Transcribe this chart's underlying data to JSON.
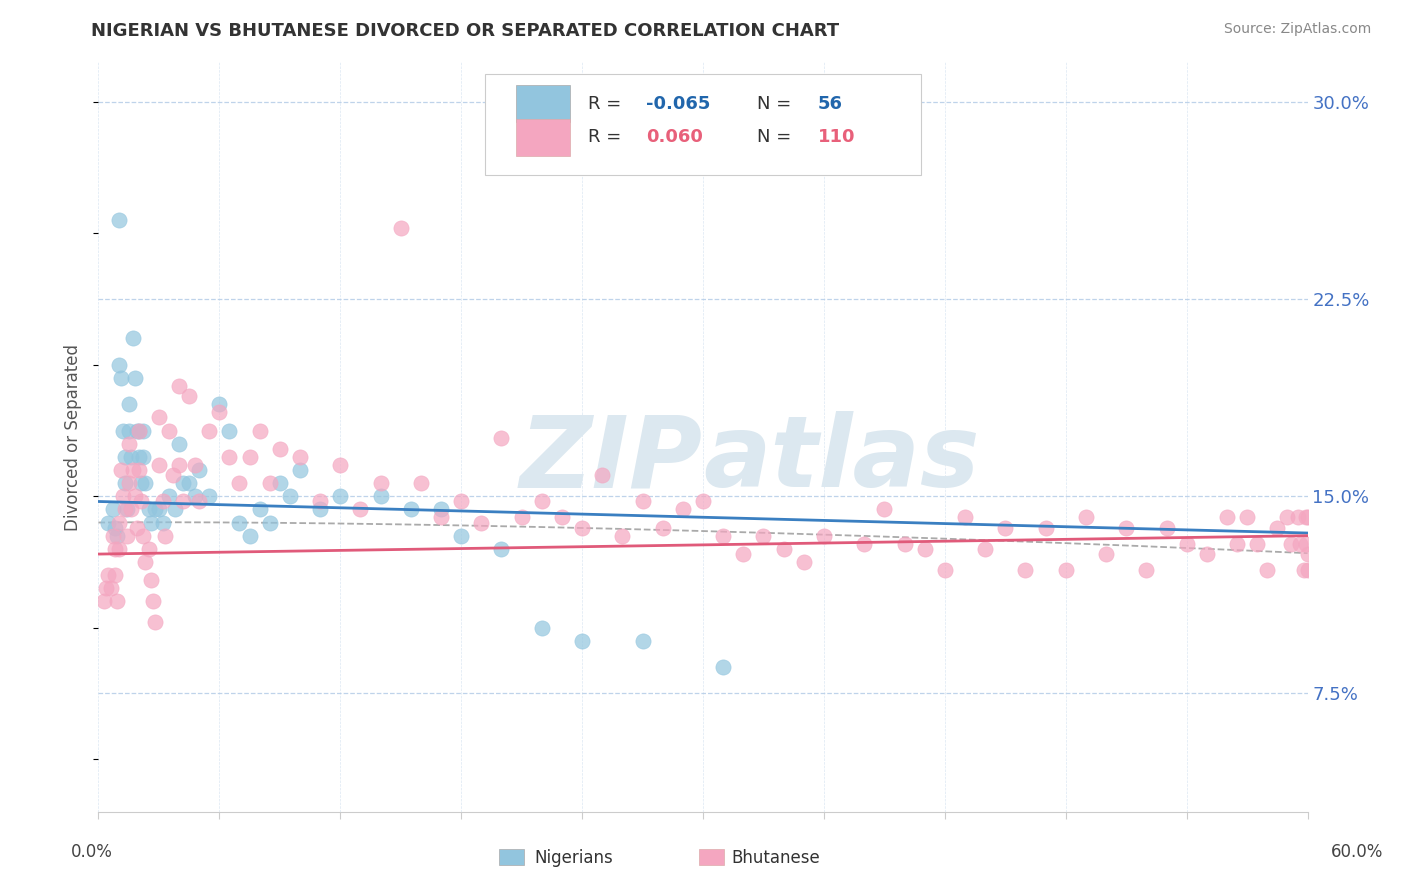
{
  "title": "NIGERIAN VS BHUTANESE DIVORCED OR SEPARATED CORRELATION CHART",
  "source_text": "Source: ZipAtlas.com",
  "ylabel": "Divorced or Separated",
  "xlim": [
    0.0,
    0.6
  ],
  "ylim": [
    0.03,
    0.315
  ],
  "yticks": [
    0.075,
    0.15,
    0.225,
    0.3
  ],
  "ytick_labels": [
    "7.5%",
    "15.0%",
    "22.5%",
    "30.0%"
  ],
  "xticks": [
    0.0,
    0.06,
    0.12,
    0.18,
    0.24,
    0.3,
    0.36,
    0.42,
    0.48,
    0.54,
    0.6
  ],
  "nigerian_R": -0.065,
  "nigerian_N": 56,
  "bhutanese_R": 0.06,
  "bhutanese_N": 110,
  "nigerian_color": "#92c5de",
  "bhutanese_color": "#f4a6c0",
  "nigerian_trend_color": "#3a7fc1",
  "bhutanese_trend_color": "#e05a7a",
  "grid_color": "#b8cfe8",
  "background_color": "#ffffff",
  "watermark_color": "#dce8f0",
  "nigerian_x": [
    0.005,
    0.007,
    0.008,
    0.009,
    0.01,
    0.01,
    0.011,
    0.012,
    0.013,
    0.013,
    0.014,
    0.015,
    0.015,
    0.016,
    0.017,
    0.018,
    0.019,
    0.02,
    0.02,
    0.021,
    0.022,
    0.022,
    0.023,
    0.025,
    0.026,
    0.028,
    0.03,
    0.032,
    0.035,
    0.038,
    0.04,
    0.042,
    0.045,
    0.048,
    0.05,
    0.055,
    0.06,
    0.065,
    0.07,
    0.075,
    0.08,
    0.085,
    0.09,
    0.095,
    0.1,
    0.11,
    0.12,
    0.14,
    0.155,
    0.17,
    0.18,
    0.2,
    0.22,
    0.24,
    0.27,
    0.31
  ],
  "nigerian_y": [
    0.14,
    0.145,
    0.138,
    0.135,
    0.255,
    0.2,
    0.195,
    0.175,
    0.165,
    0.155,
    0.145,
    0.185,
    0.175,
    0.165,
    0.21,
    0.195,
    0.175,
    0.175,
    0.165,
    0.155,
    0.175,
    0.165,
    0.155,
    0.145,
    0.14,
    0.145,
    0.145,
    0.14,
    0.15,
    0.145,
    0.17,
    0.155,
    0.155,
    0.15,
    0.16,
    0.15,
    0.185,
    0.175,
    0.14,
    0.135,
    0.145,
    0.14,
    0.155,
    0.15,
    0.16,
    0.145,
    0.15,
    0.15,
    0.145,
    0.145,
    0.135,
    0.13,
    0.1,
    0.095,
    0.095,
    0.085
  ],
  "bhutanese_x": [
    0.003,
    0.004,
    0.005,
    0.006,
    0.007,
    0.008,
    0.008,
    0.009,
    0.01,
    0.01,
    0.011,
    0.012,
    0.013,
    0.014,
    0.015,
    0.015,
    0.016,
    0.017,
    0.018,
    0.019,
    0.02,
    0.02,
    0.021,
    0.022,
    0.023,
    0.025,
    0.026,
    0.027,
    0.028,
    0.03,
    0.03,
    0.032,
    0.033,
    0.035,
    0.037,
    0.04,
    0.04,
    0.042,
    0.045,
    0.048,
    0.05,
    0.055,
    0.06,
    0.065,
    0.07,
    0.075,
    0.08,
    0.085,
    0.09,
    0.1,
    0.11,
    0.12,
    0.13,
    0.14,
    0.15,
    0.16,
    0.17,
    0.18,
    0.19,
    0.2,
    0.21,
    0.22,
    0.23,
    0.24,
    0.25,
    0.26,
    0.27,
    0.28,
    0.29,
    0.3,
    0.31,
    0.32,
    0.33,
    0.34,
    0.35,
    0.36,
    0.38,
    0.39,
    0.4,
    0.41,
    0.42,
    0.43,
    0.44,
    0.45,
    0.46,
    0.47,
    0.48,
    0.49,
    0.5,
    0.51,
    0.52,
    0.53,
    0.54,
    0.55,
    0.56,
    0.565,
    0.57,
    0.575,
    0.58,
    0.585,
    0.59,
    0.592,
    0.595,
    0.596,
    0.598,
    0.599,
    0.599,
    0.6,
    0.6,
    0.6
  ],
  "bhutanese_y": [
    0.11,
    0.115,
    0.12,
    0.115,
    0.135,
    0.13,
    0.12,
    0.11,
    0.14,
    0.13,
    0.16,
    0.15,
    0.145,
    0.135,
    0.17,
    0.155,
    0.145,
    0.16,
    0.15,
    0.138,
    0.175,
    0.16,
    0.148,
    0.135,
    0.125,
    0.13,
    0.118,
    0.11,
    0.102,
    0.18,
    0.162,
    0.148,
    0.135,
    0.175,
    0.158,
    0.192,
    0.162,
    0.148,
    0.188,
    0.162,
    0.148,
    0.175,
    0.182,
    0.165,
    0.155,
    0.165,
    0.175,
    0.155,
    0.168,
    0.165,
    0.148,
    0.162,
    0.145,
    0.155,
    0.252,
    0.155,
    0.142,
    0.148,
    0.14,
    0.172,
    0.142,
    0.148,
    0.142,
    0.138,
    0.158,
    0.135,
    0.148,
    0.138,
    0.145,
    0.148,
    0.135,
    0.128,
    0.135,
    0.13,
    0.125,
    0.135,
    0.132,
    0.145,
    0.132,
    0.13,
    0.122,
    0.142,
    0.13,
    0.138,
    0.122,
    0.138,
    0.122,
    0.142,
    0.128,
    0.138,
    0.122,
    0.138,
    0.132,
    0.128,
    0.142,
    0.132,
    0.142,
    0.132,
    0.122,
    0.138,
    0.142,
    0.132,
    0.142,
    0.132,
    0.122,
    0.142,
    0.132,
    0.142,
    0.128,
    0.122
  ]
}
